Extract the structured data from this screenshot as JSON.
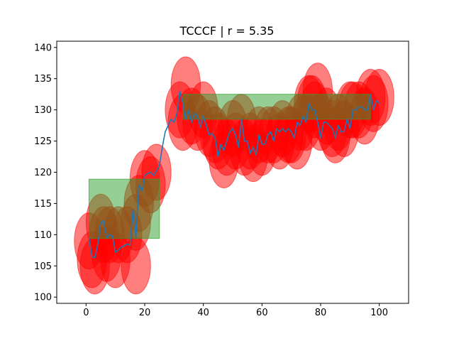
{
  "chart_data": {
    "type": "line",
    "title": "TCCCF | r = 5.35",
    "xlabel": "",
    "ylabel": "",
    "xlim": [
      -10,
      110
    ],
    "ylim": [
      99,
      141
    ],
    "xticks": [
      0,
      20,
      40,
      60,
      80,
      100
    ],
    "yticks": [
      100,
      105,
      110,
      115,
      120,
      125,
      130,
      135,
      140
    ],
    "grid": false,
    "series": [
      {
        "color": "#1f77b4",
        "x": [
          1,
          2,
          3,
          4,
          5,
          6,
          7,
          8,
          9,
          10,
          11,
          12,
          13,
          14,
          15,
          16,
          17,
          18,
          19,
          20,
          21,
          22,
          23,
          24,
          25,
          26,
          27,
          28,
          29,
          30,
          31,
          32,
          33,
          34,
          35,
          36,
          37,
          38,
          39,
          40,
          41,
          42,
          43,
          44,
          45,
          46,
          47,
          48,
          49,
          50,
          51,
          52,
          53,
          54,
          55,
          56,
          57,
          58,
          59,
          60,
          61,
          62,
          63,
          64,
          65,
          66,
          67,
          68,
          69,
          70,
          71,
          72,
          73,
          74,
          75,
          76,
          77,
          78,
          79,
          80,
          81,
          82,
          83,
          84,
          85,
          86,
          87,
          88,
          89,
          90,
          91,
          92,
          93,
          94,
          95,
          96,
          97,
          98,
          99,
          100
        ],
        "y": [
          109.5,
          106.5,
          106.3,
          108.5,
          112,
          112.2,
          109.5,
          110,
          109.8,
          107.2,
          107.5,
          108,
          108.2,
          108.5,
          108.3,
          114,
          109.5,
          118,
          117,
          119.5,
          119.8,
          120,
          119.5,
          120.2,
          121,
          124,
          126.5,
          127.5,
          128.5,
          128,
          129.5,
          133,
          131,
          128.5,
          130,
          128,
          129.5,
          129,
          127.2,
          129,
          127.5,
          126,
          126.2,
          125.5,
          122.5,
          124.5,
          123.5,
          125,
          126.5,
          127,
          126,
          124,
          128.5,
          125,
          125,
          123,
          124,
          122.8,
          126,
          124.5,
          124.5,
          126,
          126.5,
          125,
          127,
          126.5,
          127,
          126.5,
          127,
          126.5,
          125.5,
          128,
          127.5,
          129,
          128,
          131,
          130,
          130,
          128,
          125.5,
          128,
          128,
          127.5,
          127,
          125.5,
          127.5,
          126.5,
          126.5,
          128.5,
          127,
          130,
          130,
          130.5,
          130.5,
          130,
          130,
          132.5,
          130,
          131.5,
          131
        ]
      }
    ],
    "rectangles": [
      {
        "x": [
          1,
          25
        ],
        "y": [
          109.4,
          118.9
        ],
        "color": "#2ca02c"
      },
      {
        "x": [
          33,
          97
        ],
        "y": [
          128.5,
          132.5
        ],
        "color": "#2ca02c"
      }
    ],
    "ellipses": {
      "color": "#ff0000",
      "rx": 5,
      "ry": 4.5,
      "centers": [
        [
          1,
          109
        ],
        [
          2,
          106
        ],
        [
          3,
          105
        ],
        [
          5,
          112
        ],
        [
          6,
          110
        ],
        [
          7,
          107
        ],
        [
          8,
          110
        ],
        [
          10,
          106
        ],
        [
          11,
          110
        ],
        [
          14,
          110
        ],
        [
          17,
          105
        ],
        [
          17,
          112
        ],
        [
          18,
          115
        ],
        [
          20,
          119
        ],
        [
          22,
          118
        ],
        [
          24,
          120
        ],
        [
          32,
          130
        ],
        [
          33,
          128
        ],
        [
          34,
          134
        ],
        [
          36,
          129
        ],
        [
          38,
          128
        ],
        [
          40,
          130
        ],
        [
          42,
          127
        ],
        [
          44,
          126
        ],
        [
          45,
          125
        ],
        [
          47,
          122
        ],
        [
          48,
          124
        ],
        [
          50,
          127
        ],
        [
          51,
          125
        ],
        [
          53,
          128
        ],
        [
          54,
          124
        ],
        [
          56,
          125
        ],
        [
          57,
          123
        ],
        [
          59,
          126
        ],
        [
          60,
          124
        ],
        [
          62,
          126
        ],
        [
          64,
          126
        ],
        [
          66,
          125
        ],
        [
          67,
          127
        ],
        [
          69,
          126
        ],
        [
          70,
          126
        ],
        [
          72,
          125
        ],
        [
          73,
          128
        ],
        [
          75,
          128
        ],
        [
          76,
          131
        ],
        [
          77,
          131
        ],
        [
          78,
          130
        ],
        [
          79,
          133
        ],
        [
          80,
          128
        ],
        [
          82,
          129
        ],
        [
          84,
          127
        ],
        [
          85,
          126
        ],
        [
          86,
          128
        ],
        [
          88,
          127
        ],
        [
          90,
          130
        ],
        [
          91,
          130
        ],
        [
          93,
          130
        ],
        [
          95,
          129
        ],
        [
          97,
          132
        ],
        [
          98,
          131
        ],
        [
          100,
          132
        ]
      ]
    }
  }
}
